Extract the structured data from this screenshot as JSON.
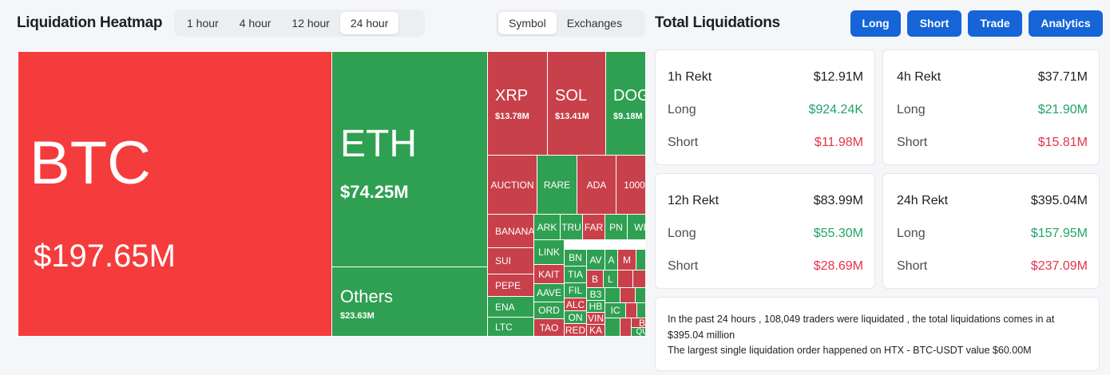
{
  "heatmap": {
    "title": "Liquidation Heatmap",
    "time_tabs": [
      "1 hour",
      "4 hour",
      "12 hour",
      "24 hour"
    ],
    "active_time_tab": "24 hour",
    "view_tabs": [
      "Symbol",
      "Exchanges"
    ],
    "active_view_tab": "Symbol",
    "colors": {
      "long_liq": "#2fa052",
      "short_liq": "#f53c3c",
      "mixed_red": "#c8404a"
    },
    "tiles": {
      "btc": {
        "symbol": "BTC",
        "value": "$197.65M"
      },
      "eth": {
        "symbol": "ETH",
        "value": "$74.25M"
      },
      "others": {
        "symbol": "Others",
        "value": "$23.63M"
      },
      "xrp": {
        "symbol": "XRP",
        "value": "$13.78M"
      },
      "sol": {
        "symbol": "SOL",
        "value": "$13.41M"
      },
      "doge": {
        "symbol": "DOG",
        "value": "$9.18M"
      },
      "auction": {
        "symbol": "AUCTION"
      },
      "rare": {
        "symbol": "RARE"
      },
      "ada": {
        "symbol": "ADA"
      },
      "k1000": {
        "symbol": "1000"
      },
      "banana": {
        "symbol": "BANANA"
      },
      "sui": {
        "symbol": "SUI"
      },
      "pepe": {
        "symbol": "PEPE"
      },
      "ena": {
        "symbol": "ENA"
      },
      "ltc": {
        "symbol": "LTC"
      },
      "ark": {
        "symbol": "ARK"
      },
      "tru": {
        "symbol": "TRU"
      },
      "far": {
        "symbol": "FAR"
      },
      "pn": {
        "symbol": "PN"
      },
      "wi": {
        "symbol": "WI"
      },
      "link": {
        "symbol": "LINK"
      },
      "kait": {
        "symbol": "KAIT"
      },
      "aave": {
        "symbol": "AAVE"
      },
      "ord": {
        "symbol": "ORD"
      },
      "tao": {
        "symbol": "TAO"
      },
      "bn": {
        "symbol": "BN"
      },
      "tia": {
        "symbol": "TIA"
      },
      "fil": {
        "symbol": "FIL"
      },
      "alc": {
        "symbol": "ALC"
      },
      "on": {
        "symbol": "ON"
      },
      "red": {
        "symbol": "RED"
      },
      "av": {
        "symbol": "AV"
      },
      "a": {
        "symbol": "A"
      },
      "m": {
        "symbol": "M"
      },
      "b": {
        "symbol": "B"
      },
      "l": {
        "symbol": "L"
      },
      "b3": {
        "symbol": "B3"
      },
      "hb": {
        "symbol": "HB"
      },
      "vin": {
        "symbol": "VIN"
      },
      "ka": {
        "symbol": "KA"
      },
      "ic": {
        "symbol": "IC"
      },
      "b2": {
        "symbol": "B"
      },
      "qu": {
        "symbol": "QU"
      }
    }
  },
  "totals": {
    "title": "Total Liquidations",
    "buttons": [
      "Long",
      "Short",
      "Trade",
      "Analytics"
    ],
    "cards": [
      {
        "label": "1h Rekt",
        "total": "$12.91M",
        "long_label": "Long",
        "long": "$924.24K",
        "short_label": "Short",
        "short": "$11.98M"
      },
      {
        "label": "4h Rekt",
        "total": "$37.71M",
        "long_label": "Long",
        "long": "$21.90M",
        "short_label": "Short",
        "short": "$15.81M"
      },
      {
        "label": "12h Rekt",
        "total": "$83.99M",
        "long_label": "Long",
        "long": "$55.30M",
        "short_label": "Short",
        "short": "$28.69M"
      },
      {
        "label": "24h Rekt",
        "total": "$395.04M",
        "long_label": "Long",
        "long": "$157.95M",
        "short_label": "Short",
        "short": "$237.09M"
      }
    ],
    "summary_line1": "In the past 24 hours , 108,049 traders were liquidated , the total liquidations comes in at $395.04 million",
    "summary_line2": "The largest single liquidation order happened on HTX - BTC-USDT value $60.00M"
  }
}
